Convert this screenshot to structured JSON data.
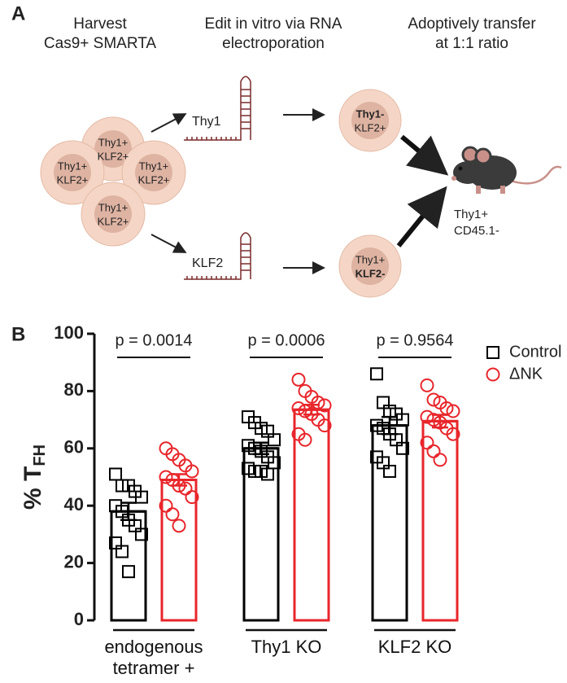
{
  "panel_a": {
    "label": "A",
    "headings": [
      {
        "lines": [
          "Harvest",
          "Cas9+ SMARTA"
        ]
      },
      {
        "lines": [
          "Edit in vitro via RNA",
          "electroporation"
        ]
      },
      {
        "lines": [
          "Adoptively transfer",
          "at 1:1 ratio"
        ]
      }
    ],
    "cluster_cells": [
      {
        "lines": [
          "Thy1+",
          "KLF2+"
        ]
      },
      {
        "lines": [
          "Thy1+",
          "KLF2+"
        ]
      },
      {
        "lines": [
          "Thy1+",
          "KLF2+"
        ]
      },
      {
        "lines": [
          "Thy1+",
          "KLF2+"
        ]
      }
    ],
    "guides": [
      "Thy1",
      "KLF2"
    ],
    "edited_cells": [
      {
        "lines": [
          "Thy1-",
          "KLF2+"
        ]
      },
      {
        "lines": [
          "Thy1+",
          "KLF2-"
        ]
      }
    ],
    "recipient": {
      "lines": [
        "Thy1+",
        "CD45.1-"
      ]
    }
  },
  "chart_data": {
    "type": "bar",
    "panel_label": "B",
    "y_label": "% T",
    "y_label_subscript": "FH",
    "categories": [
      "endogenous tetramer +",
      "Thy1 KO",
      "KLF2 KO"
    ],
    "annotations": [
      "p = 0.0014",
      "p = 0.0006",
      "p = 0.9564"
    ],
    "ylim": [
      0,
      100
    ],
    "yticks": [
      0,
      20,
      40,
      60,
      80,
      100
    ],
    "legend": "upper right",
    "series": [
      {
        "name": "Control",
        "color": "#000000",
        "marker": "square",
        "values": [
          38,
          60,
          68
        ],
        "errors": [
          3,
          2,
          3
        ],
        "points": [
          [
            51,
            47,
            47,
            45,
            43,
            40,
            38,
            35,
            33,
            30,
            27,
            24,
            17
          ],
          [
            71,
            69,
            67,
            66,
            63,
            61,
            60,
            59,
            57,
            55,
            53,
            52,
            52,
            51
          ],
          [
            86,
            76,
            73,
            72,
            70,
            68,
            67,
            65,
            63,
            60,
            57,
            55,
            52
          ]
        ]
      },
      {
        "name": "ΔNK",
        "color": "#e8262b",
        "marker": "circle",
        "values": [
          49,
          73.5,
          69.5
        ],
        "errors": [
          2,
          1.7,
          2.2
        ],
        "points": [
          [
            60,
            58,
            56,
            54,
            52,
            50,
            49,
            47,
            46,
            43,
            40,
            37,
            33
          ],
          [
            84,
            80,
            78,
            76,
            75,
            74,
            73,
            72,
            70,
            68,
            65,
            63
          ],
          [
            82,
            77,
            76,
            74,
            73,
            71,
            70,
            69,
            67,
            65,
            62,
            59,
            56
          ]
        ]
      }
    ]
  }
}
